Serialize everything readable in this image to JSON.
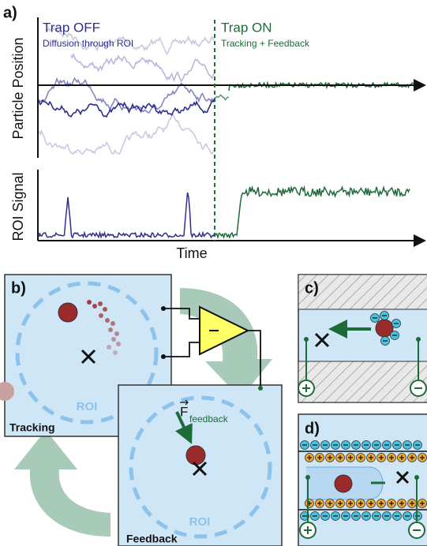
{
  "panel_a": {
    "label": "a)",
    "trap_off": "Trap OFF",
    "trap_off_note": "Diffusion through ROI",
    "trap_on": "Trap ON",
    "trap_on_note": "Tracking + Feedback",
    "y_label_top": "Particle Position",
    "y_label_bottom": "ROI Signal",
    "x_label": "Time"
  },
  "panel_b": {
    "label": "b)",
    "roi_tracking": "ROI",
    "tracking": "Tracking",
    "roi_feedback": "ROI",
    "feedback": "Feedback",
    "force": "F",
    "force_subscript": "feedback"
  },
  "panel_c": {
    "label": "c)"
  },
  "panel_d": {
    "label": "d)"
  }
}
